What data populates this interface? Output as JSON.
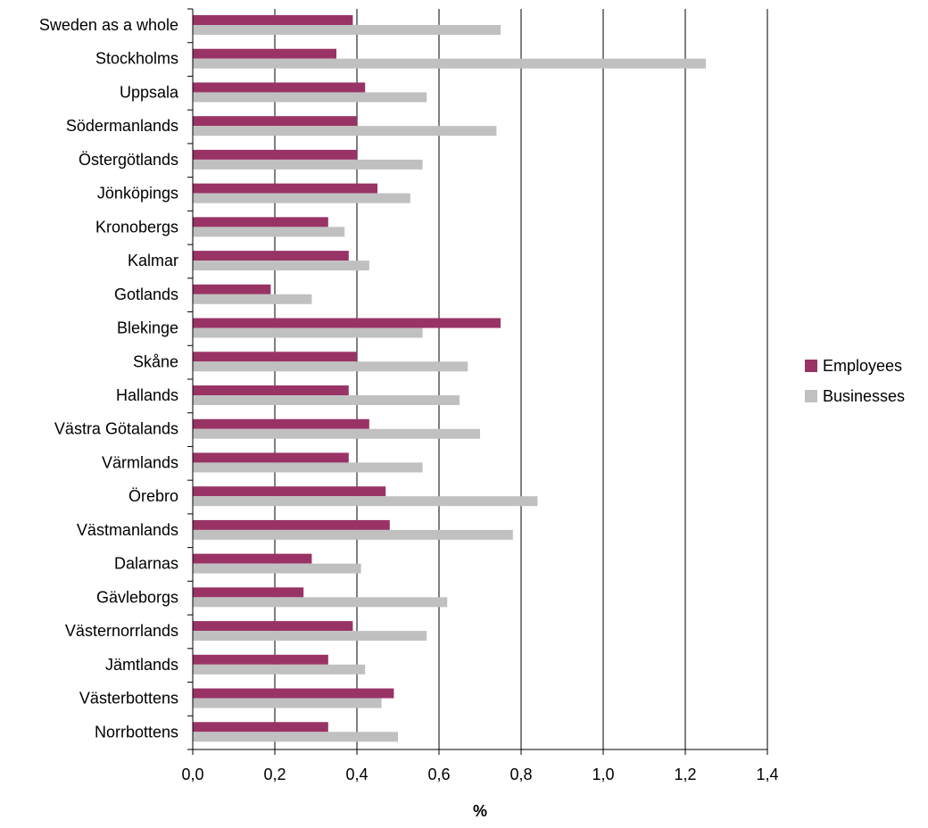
{
  "chart_data": {
    "type": "bar",
    "orientation": "horizontal",
    "title": "",
    "xlabel": "%",
    "ylabel": "",
    "xlim": [
      0,
      1.4
    ],
    "x_ticks": [
      0,
      0.2,
      0.4,
      0.6,
      0.8,
      1.0,
      1.2,
      1.4
    ],
    "x_tick_labels": [
      "0,0",
      "0,2",
      "0,4",
      "0,6",
      "0,8",
      "1,0",
      "1,2",
      "1,4"
    ],
    "grid": "vertical major gridlines",
    "legend_position": "right",
    "categories": [
      "Sweden as a whole",
      "Stockholms",
      "Uppsala",
      "Södermanlands",
      "Östergötlands",
      "Jönköpings",
      "Kronobergs",
      "Kalmar",
      "Gotlands",
      "Blekinge",
      "Skåne",
      "Hallands",
      "Västra Götalands",
      "Värmlands",
      "Örebro",
      "Västmanlands",
      "Dalarnas",
      "Gävleborgs",
      "Västernorrlands",
      "Jämtlands",
      "Västerbottens",
      "Norrbottens"
    ],
    "series": [
      {
        "name": "Employees",
        "color": "#993366",
        "values": [
          0.39,
          0.35,
          0.42,
          0.4,
          0.4,
          0.45,
          0.33,
          0.38,
          0.19,
          0.75,
          0.4,
          0.38,
          0.43,
          0.38,
          0.47,
          0.48,
          0.29,
          0.27,
          0.39,
          0.33,
          0.49,
          0.33
        ]
      },
      {
        "name": "Businesses",
        "color": "#c0c0c0",
        "values": [
          0.75,
          1.25,
          0.57,
          0.74,
          0.56,
          0.53,
          0.37,
          0.43,
          0.29,
          0.56,
          0.67,
          0.65,
          0.7,
          0.56,
          0.84,
          0.78,
          0.41,
          0.62,
          0.57,
          0.42,
          0.46,
          0.5
        ]
      }
    ]
  }
}
